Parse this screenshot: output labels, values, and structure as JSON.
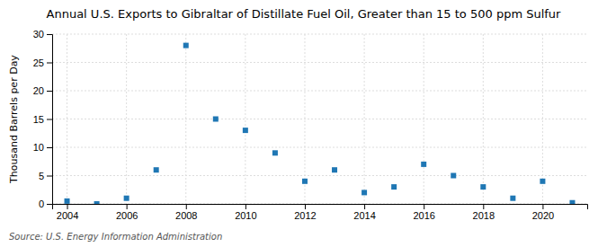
{
  "chart_data": {
    "type": "scatter",
    "title": "Annual U.S. Exports to Gibraltar of Distillate Fuel Oil, Greater than 15 to 500 ppm Sulfur",
    "ylabel": "Thousand Barrels per Day",
    "annotations": [
      "Source: U.S. Energy Information Administration"
    ],
    "x": [
      2004,
      2005,
      2006,
      2007,
      2008,
      2009,
      2010,
      2011,
      2012,
      2013,
      2014,
      2015,
      2016,
      2017,
      2018,
      2019,
      2020,
      2021
    ],
    "values": [
      0.5,
      0,
      1.0,
      6.0,
      28.0,
      15.0,
      13.0,
      9.0,
      4.0,
      6.0,
      2.0,
      3.0,
      7.0,
      5.0,
      3.0,
      1.0,
      4.0,
      0.2
    ],
    "marker": "square",
    "xlim": [
      2003.5,
      2021.5
    ],
    "xticks": [
      2004,
      2006,
      2008,
      2010,
      2012,
      2014,
      2016,
      2018,
      2020
    ],
    "ylim": [
      0,
      30
    ],
    "yticks": [
      0,
      5,
      10,
      15,
      20,
      25,
      30
    ],
    "grid": true
  }
}
